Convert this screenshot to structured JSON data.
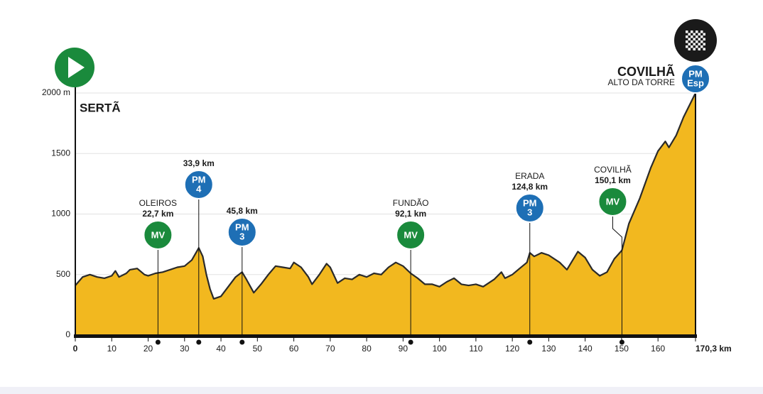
{
  "chart_data": {
    "type": "area",
    "x": [
      0,
      2,
      4,
      6,
      8,
      10,
      11,
      12,
      14,
      15,
      17,
      19,
      20,
      22,
      24,
      26,
      28,
      30,
      32,
      33.9,
      35,
      36,
      37,
      38,
      40,
      42,
      44,
      45.8,
      47,
      49,
      51,
      53,
      55,
      57,
      59,
      60,
      62,
      64,
      65,
      67,
      69,
      70,
      72,
      74,
      76,
      78,
      80,
      82,
      84,
      86,
      88,
      90,
      92.1,
      94,
      96,
      98,
      100,
      102,
      104,
      106,
      108,
      110,
      112,
      115,
      117,
      118,
      120,
      122,
      124,
      124.8,
      126,
      128,
      130,
      133,
      135,
      138,
      140,
      142,
      144,
      146,
      148,
      150.1,
      152,
      155,
      158,
      160,
      162,
      163,
      165,
      167,
      169,
      170.3
    ],
    "values": [
      410,
      480,
      500,
      480,
      470,
      490,
      530,
      480,
      510,
      540,
      550,
      500,
      490,
      510,
      520,
      540,
      560,
      570,
      620,
      720,
      650,
      500,
      380,
      300,
      320,
      400,
      480,
      520,
      460,
      350,
      420,
      500,
      570,
      560,
      550,
      600,
      560,
      480,
      420,
      500,
      590,
      560,
      430,
      470,
      460,
      500,
      480,
      510,
      500,
      560,
      600,
      570,
      510,
      470,
      420,
      420,
      400,
      440,
      470,
      420,
      410,
      420,
      400,
      460,
      520,
      470,
      500,
      550,
      600,
      680,
      650,
      680,
      660,
      600,
      540,
      690,
      640,
      540,
      490,
      520,
      630,
      700,
      920,
      1130,
      1380,
      1520,
      1600,
      1550,
      1650,
      1800,
      1920,
      2000
    ],
    "color": "#f2b81f",
    "line_color": "#2a2a2a",
    "grid": true,
    "xlim": [
      0,
      170.3
    ],
    "ylim": [
      0,
      2000
    ],
    "xticks": [
      0,
      10,
      20,
      30,
      40,
      50,
      60,
      70,
      80,
      90,
      100,
      110,
      120,
      130,
      140,
      150,
      160,
      {
        "value": 170.3,
        "label": "170,3 km"
      }
    ],
    "yticks": [
      0,
      500,
      1000,
      1500,
      {
        "value": 2000,
        "label": "2000 m"
      }
    ],
    "markers": [
      {
        "name": "OLEIROS",
        "km": 22.7,
        "km_label": "22,7 km",
        "badge": [
          "MV"
        ],
        "color": "#1a8a3c"
      },
      {
        "km": 33.9,
        "km_label": "33,9 km",
        "badge": [
          "PM",
          "4"
        ],
        "color": "#1e6fb5"
      },
      {
        "km": 45.8,
        "km_label": "45,8 km",
        "badge": [
          "PM",
          "3"
        ],
        "color": "#1e6fb5"
      },
      {
        "name": "FUNDÃO",
        "km": 92.1,
        "km_label": "92,1 km",
        "badge": [
          "MV"
        ],
        "color": "#1a8a3c"
      },
      {
        "name": "ERADA",
        "km": 124.8,
        "km_label": "124,8 km",
        "badge": [
          "PM",
          "3"
        ],
        "color": "#1e6fb5"
      },
      {
        "name": "COVILHÃ",
        "km": 150.1,
        "km_label": "150,1 km",
        "badge": [
          "MV"
        ],
        "color": "#1a8a3c"
      }
    ]
  },
  "start": {
    "name": "SERTÃ"
  },
  "finish": {
    "name": "COVILHÃ",
    "subtitle": "ALTO DA TORRE",
    "badge": [
      "PM",
      "Esp"
    ],
    "color": "#1e6fb5"
  }
}
